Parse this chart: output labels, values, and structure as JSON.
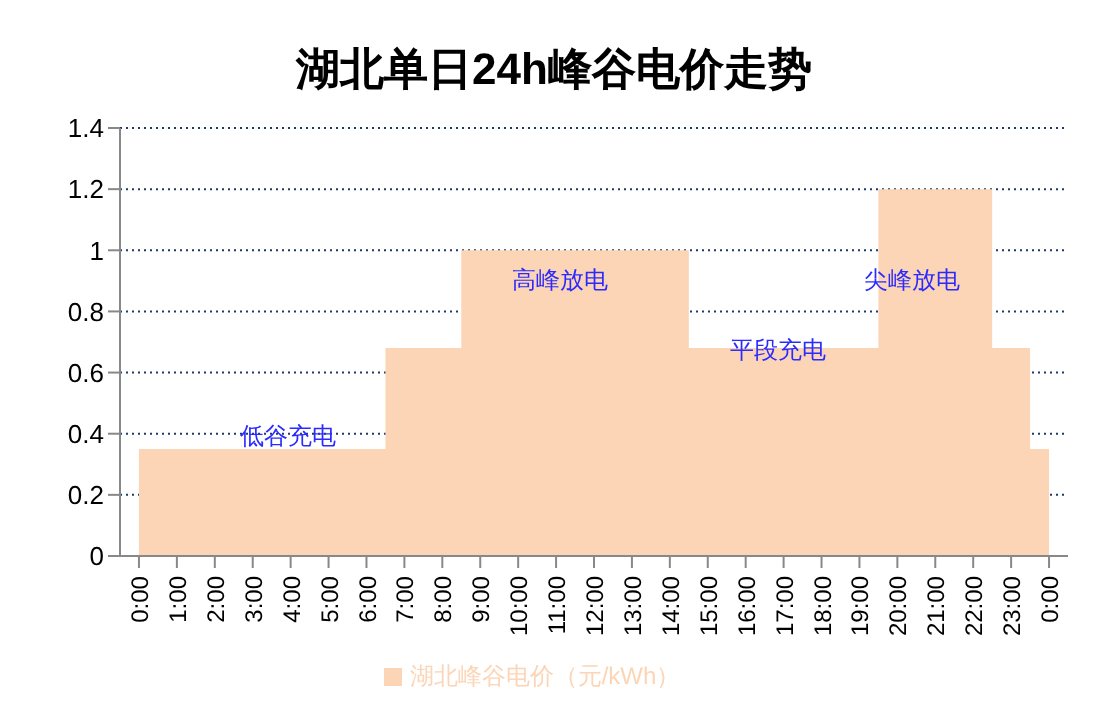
{
  "chart_data": {
    "type": "area",
    "title": "湖北单日24h峰谷电价走势",
    "categories": [
      "0:00",
      "1:00",
      "2:00",
      "3:00",
      "4:00",
      "5:00",
      "6:00",
      "7:00",
      "8:00",
      "9:00",
      "10:00",
      "11:00",
      "12:00",
      "13:00",
      "14:00",
      "15:00",
      "16:00",
      "17:00",
      "18:00",
      "19:00",
      "20:00",
      "21:00",
      "22:00",
      "23:00",
      "0:00"
    ],
    "series": [
      {
        "name": "湖北峰谷电价（元/kWh）",
        "color": "#fbd5b5",
        "values": [
          0.35,
          0.35,
          0.35,
          0.35,
          0.35,
          0.35,
          0.35,
          0.68,
          0.68,
          1.0,
          1.0,
          1.0,
          1.0,
          1.0,
          1.0,
          0.68,
          0.68,
          0.68,
          0.68,
          0.68,
          1.2,
          1.2,
          1.2,
          0.68,
          0.35
        ]
      }
    ],
    "ylim": [
      0,
      1.4
    ],
    "yticks": [
      0,
      0.2,
      0.4,
      0.6,
      0.8,
      1,
      1.2,
      1.4
    ],
    "grid": "y",
    "legend": "bottom",
    "annotations": [
      "低谷充电",
      "高峰放电",
      "平段充电",
      "尖峰放电"
    ]
  }
}
